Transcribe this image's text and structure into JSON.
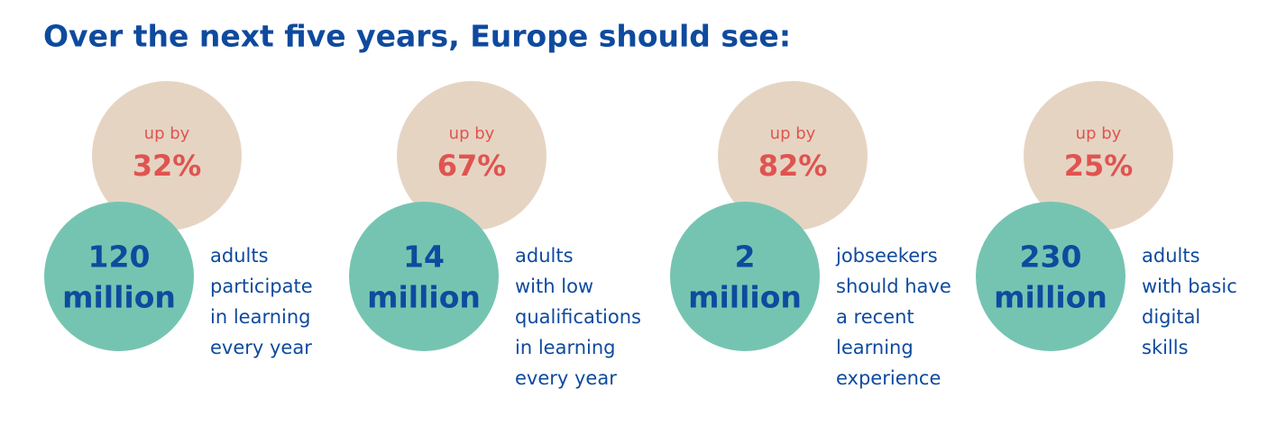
{
  "header": {
    "title": "Over the next five years, Europe should see:"
  },
  "items": [
    {
      "increase_label": "up by",
      "increase": "32%",
      "target_number": "120",
      "target_unit": "million",
      "description": [
        "adults",
        "participate",
        "in learning",
        "every year"
      ]
    },
    {
      "increase_label": "up by",
      "increase": "67%",
      "target_number": "14",
      "target_unit": "million",
      "description": [
        "adults",
        "with low",
        "qualifications",
        "in learning",
        "every year"
      ]
    },
    {
      "increase_label": "up by",
      "increase": "82%",
      "target_number": "2",
      "target_unit": "million",
      "description": [
        "jobseekers",
        "should have",
        "a recent",
        "learning",
        "experience"
      ]
    },
    {
      "increase_label": "up by",
      "increase": "25%",
      "target_number": "230",
      "target_unit": "million",
      "description": [
        "adults",
        "with basic",
        "digital",
        "skills"
      ]
    }
  ]
}
